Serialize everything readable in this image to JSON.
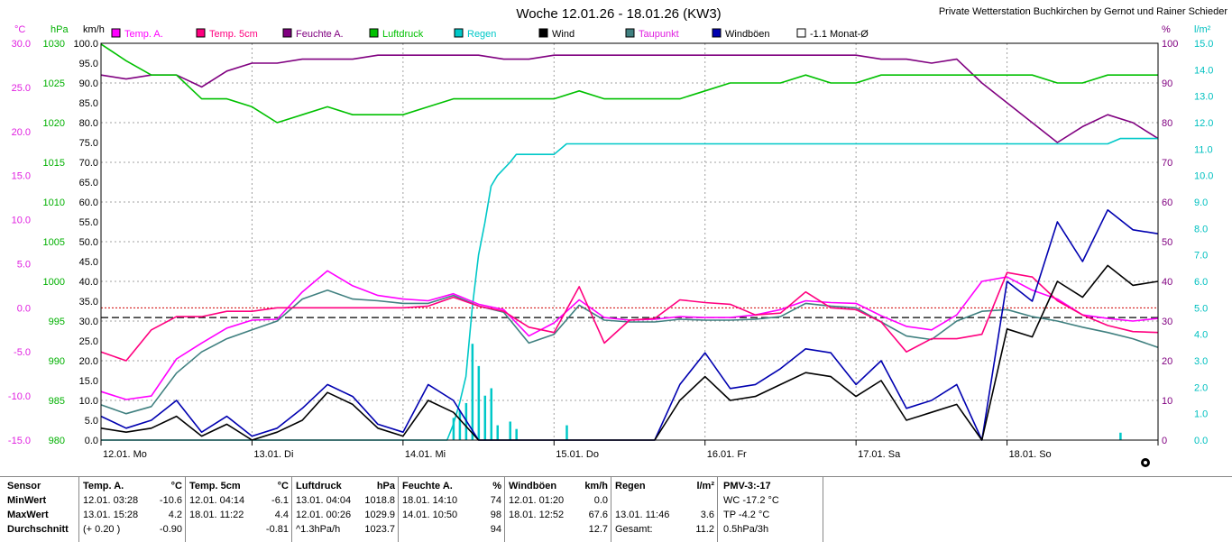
{
  "chart_data": {
    "type": "line",
    "title": "Woche 12.01.26 - 18.01.26 (KW3)",
    "credit": "Private Wetterstation Buchkirchen by Gernot und Rainer Schieder",
    "x_labels": [
      "12.01. Mo",
      "13.01. Di",
      "14.01. Mi",
      "15.01. Do",
      "16.01. Fr",
      "17.01. Sa",
      "18.01. So"
    ],
    "xlim": [
      0,
      168
    ],
    "grid": true,
    "axes": {
      "temp": {
        "unit": "°C",
        "color": "#e020e0",
        "min": -15,
        "max": 30,
        "ticks": [
          "30.0",
          "25.0",
          "20.0",
          "15.0",
          "10.0",
          "5.0",
          "0.0",
          "-5.0",
          "-10.0",
          "-15.0"
        ]
      },
      "pressure": {
        "unit": "hPa",
        "color": "#00b000",
        "min": 980,
        "max": 1030,
        "ticks": [
          "1030",
          "1025",
          "1020",
          "1015",
          "1010",
          "1005",
          "1000",
          "995",
          "990",
          "985",
          "980"
        ]
      },
      "wind": {
        "unit": "km/h",
        "color": "#000000",
        "min": 0,
        "max": 100,
        "ticks": [
          "100.0",
          "95.0",
          "90.0",
          "85.0",
          "80.0",
          "75.0",
          "70.0",
          "65.0",
          "60.0",
          "55.0",
          "50.0",
          "45.0",
          "40.0",
          "35.0",
          "30.0",
          "25.0",
          "20.0",
          "15.0",
          "10.0",
          "5.0",
          "0.0"
        ]
      },
      "humidity": {
        "unit": "%",
        "color": "#800080",
        "min": 0,
        "max": 100,
        "ticks": [
          "100",
          "90",
          "80",
          "70",
          "60",
          "50",
          "40",
          "30",
          "20",
          "10",
          "0"
        ]
      },
      "rain": {
        "unit": "l/m²",
        "color": "#00c0c0",
        "min": 0,
        "max": 15,
        "ticks": [
          "15.0",
          "14.0",
          "13.0",
          "12.0",
          "11.0",
          "10.0",
          "9.0",
          "8.0",
          "7.0",
          "6.0",
          "5.0",
          "4.0",
          "3.0",
          "2.0",
          "1.0",
          "0.0"
        ]
      }
    },
    "legend": [
      {
        "name": "Temp. A.",
        "color": "#ff00ff"
      },
      {
        "name": "Temp. 5cm",
        "color": "#ff007f"
      },
      {
        "name": "Feuchte A.",
        "color": "#800080"
      },
      {
        "name": "Luftdruck",
        "color": "#00c000"
      },
      {
        "name": "Regen",
        "color": "#00c8c8"
      },
      {
        "name": "Wind",
        "color": "#000000"
      },
      {
        "name": "Taupunkt",
        "color": "#408080"
      },
      {
        "name": "Windböen",
        "color": "#0000b0"
      },
      {
        "name": "-1.1 Monat-Ø",
        "color": "#ffffff"
      }
    ],
    "reference_lines": [
      {
        "axis": "temp",
        "value": 0,
        "color": "#d00000",
        "style": "dotted"
      },
      {
        "axis": "temp",
        "value": -1.1,
        "color": "#000000",
        "style": "dashed"
      }
    ],
    "series": [
      {
        "name": "Feuchte A.",
        "axis": "humidity",
        "color": "#800080",
        "x": [
          0,
          4,
          8,
          12,
          16,
          20,
          24,
          28,
          32,
          36,
          40,
          44,
          48,
          52,
          56,
          60,
          64,
          68,
          72,
          76,
          80,
          84,
          88,
          92,
          96,
          100,
          104,
          108,
          112,
          116,
          120,
          124,
          128,
          132,
          136,
          140,
          144,
          148,
          152,
          156,
          160,
          164,
          168
        ],
        "y": [
          92,
          91,
          92,
          92,
          89,
          93,
          95,
          95,
          96,
          96,
          96,
          97,
          97,
          97,
          97,
          97,
          96,
          96,
          97,
          97,
          97,
          97,
          97,
          97,
          97,
          97,
          97,
          97,
          97,
          97,
          97,
          96,
          96,
          95,
          96,
          90,
          85,
          80,
          75,
          79,
          82,
          80,
          76
        ]
      },
      {
        "name": "Luftdruck",
        "axis": "pressure",
        "color": "#00c000",
        "x": [
          0,
          4,
          8,
          12,
          16,
          20,
          24,
          28,
          32,
          36,
          40,
          44,
          48,
          52,
          56,
          60,
          64,
          68,
          72,
          76,
          80,
          84,
          88,
          92,
          96,
          100,
          104,
          108,
          112,
          116,
          120,
          124,
          128,
          132,
          136,
          140,
          144,
          148,
          152,
          156,
          160,
          164,
          168
        ],
        "y": [
          1029.9,
          1027.8,
          1026,
          1026,
          1023,
          1023,
          1022,
          1020,
          1021,
          1022,
          1021,
          1021,
          1021,
          1022,
          1023,
          1023,
          1023,
          1023,
          1023,
          1024,
          1023,
          1023,
          1023,
          1023,
          1024,
          1025,
          1025,
          1025,
          1026,
          1025,
          1025,
          1026,
          1026,
          1026,
          1026,
          1026,
          1026,
          1026,
          1025,
          1025,
          1026,
          1026,
          1026
        ]
      },
      {
        "name": "Regen",
        "axis": "rain",
        "color": "#00c8c8",
        "x": [
          0,
          55,
          56,
          57,
          58,
          59,
          60,
          61,
          62,
          63,
          65,
          66,
          68,
          70,
          72,
          74,
          76,
          78,
          160,
          162,
          164,
          166,
          168
        ],
        "y": [
          0,
          0,
          0.6,
          1.4,
          2.4,
          5.0,
          7.0,
          8.2,
          9.6,
          10.0,
          10.5,
          10.8,
          10.8,
          10.8,
          10.8,
          11.2,
          11.2,
          11.2,
          11.2,
          11.4,
          11.4,
          11.4,
          11.4
        ]
      },
      {
        "name": "Temp. A.",
        "axis": "temp",
        "color": "#ff00ff",
        "x": [
          0,
          4,
          8,
          12,
          16,
          20,
          24,
          28,
          32,
          36,
          40,
          44,
          48,
          52,
          56,
          60,
          64,
          68,
          72,
          76,
          80,
          84,
          88,
          92,
          96,
          100,
          104,
          108,
          112,
          116,
          120,
          124,
          128,
          132,
          136,
          140,
          144,
          148,
          152,
          156,
          160,
          164,
          168
        ],
        "y": [
          -9.5,
          -10.4,
          -10,
          -5.8,
          -4,
          -2.3,
          -1.4,
          -1.3,
          1.8,
          4.2,
          2.5,
          1.4,
          1,
          0.8,
          1.6,
          0.4,
          -0.2,
          -3.2,
          -1.7,
          0.9,
          -1.1,
          -1.4,
          -1.3,
          -1,
          -1.1,
          -1.1,
          -0.8,
          -0.2,
          0.8,
          0.6,
          0.5,
          -0.9,
          -2.1,
          -2.5,
          -0.8,
          3,
          3.5,
          2,
          1,
          -0.8,
          -1.2,
          -1.5,
          -1.2
        ]
      },
      {
        "name": "Taupunkt",
        "axis": "temp",
        "color": "#408080",
        "x": [
          0,
          4,
          8,
          12,
          16,
          20,
          24,
          28,
          32,
          36,
          40,
          44,
          48,
          52,
          56,
          60,
          64,
          68,
          72,
          76,
          80,
          84,
          88,
          92,
          96,
          100,
          104,
          108,
          112,
          116,
          120,
          124,
          128,
          132,
          136,
          140,
          144,
          148,
          152,
          156,
          160,
          164,
          168
        ],
        "y": [
          -11,
          -12,
          -11.2,
          -7.4,
          -5,
          -3.5,
          -2.5,
          -1.5,
          1,
          2,
          1,
          0.8,
          0.5,
          0.5,
          1.4,
          0.2,
          -0.5,
          -4,
          -3,
          0.3,
          -1.4,
          -1.6,
          -1.6,
          -1.3,
          -1.4,
          -1.4,
          -1.3,
          -1,
          0.5,
          0.2,
          0,
          -1.6,
          -3.2,
          -3.6,
          -1.5,
          -0.4,
          -0.2,
          -1,
          -1.5,
          -2.2,
          -2.8,
          -3.5,
          -4.5
        ]
      },
      {
        "name": "Temp. 5cm",
        "axis": "temp",
        "color": "#ff007f",
        "x": [
          0,
          4,
          8,
          12,
          16,
          20,
          24,
          28,
          32,
          36,
          40,
          44,
          48,
          52,
          56,
          60,
          64,
          68,
          72,
          76,
          80,
          84,
          88,
          92,
          96,
          100,
          104,
          108,
          112,
          116,
          120,
          124,
          128,
          132,
          136,
          140,
          144,
          148,
          152,
          156,
          160,
          164,
          168
        ],
        "y": [
          -5,
          -6,
          -2.5,
          -1,
          -1,
          -0.4,
          -0.4,
          0,
          0,
          0,
          0,
          0,
          0,
          0.2,
          1.2,
          0.2,
          -0.4,
          -2.2,
          -2.8,
          2.4,
          -4,
          -1.4,
          -1.2,
          0.9,
          0.6,
          0.4,
          -0.8,
          -0.6,
          1.8,
          0,
          -0.2,
          -1.6,
          -5,
          -3.5,
          -3.5,
          -3,
          4,
          3.5,
          0.8,
          -0.8,
          -2,
          -2.7,
          -2.8
        ]
      },
      {
        "name": "Windböen",
        "axis": "wind",
        "color": "#0000b0",
        "x": [
          0,
          4,
          8,
          12,
          16,
          20,
          24,
          28,
          32,
          36,
          40,
          44,
          48,
          52,
          56,
          60,
          64,
          68,
          72,
          76,
          80,
          84,
          88,
          92,
          96,
          100,
          104,
          108,
          112,
          116,
          120,
          124,
          128,
          132,
          136,
          140,
          144,
          148,
          152,
          156,
          160,
          164,
          168
        ],
        "y": [
          6,
          3,
          5,
          10,
          2,
          6,
          1,
          3,
          8,
          14,
          11,
          4,
          2,
          14,
          10,
          0,
          0,
          0,
          0,
          0,
          0,
          0,
          0,
          14,
          22,
          13,
          14,
          18,
          23,
          22,
          14,
          20,
          8,
          10,
          14,
          0,
          40,
          35,
          55,
          45,
          58,
          53,
          52
        ]
      },
      {
        "name": "Wind",
        "axis": "wind",
        "color": "#000000",
        "x": [
          0,
          4,
          8,
          12,
          16,
          20,
          24,
          28,
          32,
          36,
          40,
          44,
          48,
          52,
          56,
          60,
          64,
          68,
          72,
          76,
          80,
          84,
          88,
          92,
          96,
          100,
          104,
          108,
          112,
          116,
          120,
          124,
          128,
          132,
          136,
          140,
          144,
          148,
          152,
          156,
          160,
          164,
          168
        ],
        "y": [
          3,
          2,
          3,
          6,
          1,
          4,
          0,
          2,
          5,
          12,
          9,
          3,
          1,
          10,
          7,
          0,
          0,
          0,
          0,
          0,
          0,
          0,
          0,
          10,
          16,
          10,
          11,
          14,
          17,
          16,
          11,
          15,
          5,
          7,
          9,
          0,
          28,
          26,
          40,
          36,
          44,
          39,
          40
        ]
      }
    ]
  },
  "stats": {
    "row_labels": [
      "Sensor",
      "MinWert",
      "MaxWert",
      "Durchschnitt"
    ],
    "columns": [
      {
        "name": "Temp. A.",
        "unit": "°C",
        "min_time": "12.01.  03:28",
        "min": "-10.6",
        "max_time": "13.01.  15:28",
        "max": "4.2",
        "avg_time": "(+ 0.20 )",
        "avg": "-0.90"
      },
      {
        "name": "Temp. 5cm",
        "unit": "°C",
        "min_time": "12.01.  04:14",
        "min": "-6.1",
        "max_time": "18.01.  11:22",
        "max": "4.4",
        "avg_time": "",
        "avg": "-0.81"
      },
      {
        "name": "Luftdruck",
        "unit": "hPa",
        "min_time": "13.01.  04:04",
        "min": "1018.8",
        "max_time": "12.01.  00:26",
        "max": "1029.9",
        "avg_time": "^1.3hPa/h",
        "avg": "1023.7"
      },
      {
        "name": "Feuchte A.",
        "unit": "%",
        "min_time": "18.01.  14:10",
        "min": "74",
        "max_time": "14.01.  10:50",
        "max": "98",
        "avg_time": "",
        "avg": "94"
      },
      {
        "name": "Windböen",
        "unit": "km/h",
        "min_time": "12.01.  01:20",
        "min": "0.0",
        "max_time": "18.01.  12:52",
        "max": "67.6",
        "avg_time": "",
        "avg": "12.7"
      },
      {
        "name": "Regen",
        "unit": "l/m²",
        "min_time": "",
        "min": "",
        "max_time": "13.01.  11:46",
        "max": "3.6",
        "avg_time": "Gesamt:",
        "avg": "11.2"
      }
    ],
    "pmv": {
      "title": "PMV-3:-17",
      "wc": "WC -17.2 °C",
      "tp": "TP -4.2 °C",
      "trend": "0.5hPa/3h"
    }
  }
}
